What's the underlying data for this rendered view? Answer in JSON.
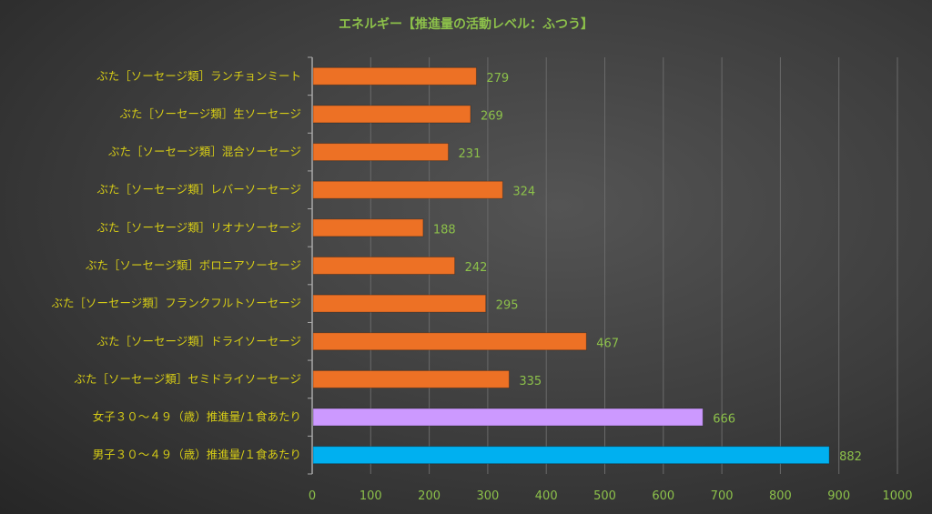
{
  "chart_data": {
    "type": "bar",
    "orientation": "horizontal",
    "title": "エネルギー【推進量の活動レベル：ふつう】",
    "categories": [
      "ぶた［ソーセージ類］ランチョンミート",
      "ぶた［ソーセージ類］生ソーセージ",
      "ぶた［ソーセージ類］混合ソーセージ",
      "ぶた［ソーセージ類］レバーソーセージ",
      "ぶた［ソーセージ類］リオナソーセージ",
      "ぶた［ソーセージ類］ボロニアソーセージ",
      "ぶた［ソーセージ類］フランクフルトソーセージ",
      "ぶた［ソーセージ類］ドライソーセージ",
      "ぶた［ソーセージ類］セミドライソーセージ",
      "女子３０～４９（歳）推進量/１食あたり",
      "男子３０～４９（歳）推進量/１食あたり"
    ],
    "values": [
      279,
      269,
      231,
      324,
      188,
      242,
      295,
      467,
      335,
      666,
      882
    ],
    "colors": [
      "#ed7125",
      "#ed7125",
      "#ed7125",
      "#ed7125",
      "#ed7125",
      "#ed7125",
      "#ed7125",
      "#ed7125",
      "#ed7125",
      "#cc99ff",
      "#00b0f0"
    ],
    "xlim": [
      0,
      1000
    ],
    "xticks": [
      "0",
      "100",
      "200",
      "300",
      "400",
      "500",
      "600",
      "700",
      "800",
      "900",
      "1000"
    ],
    "grid": true,
    "legend": "none",
    "xlabel": "",
    "ylabel": ""
  }
}
